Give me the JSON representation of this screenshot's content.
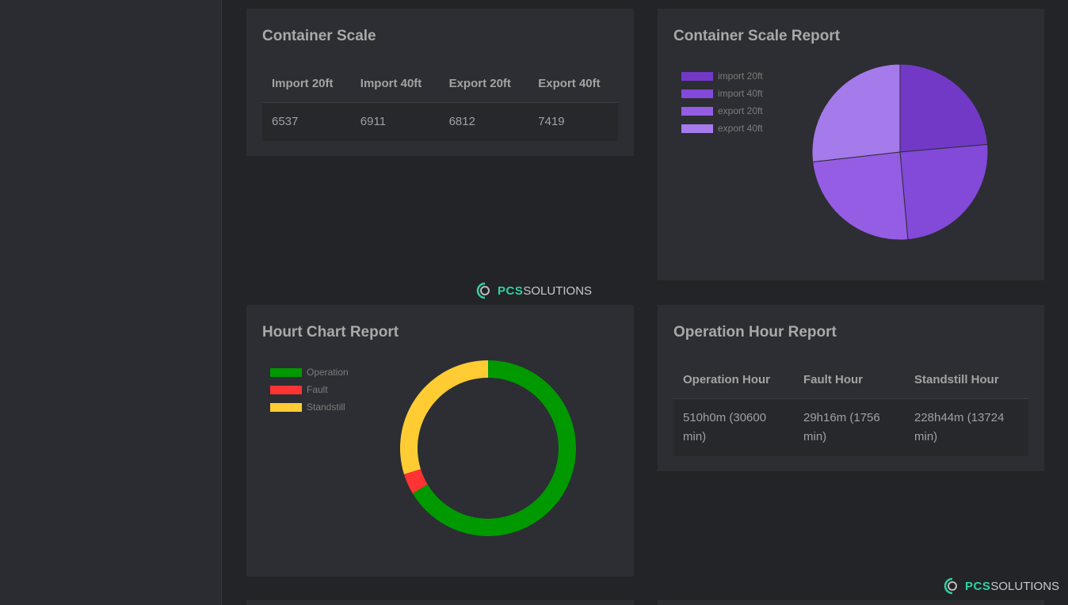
{
  "container_scale": {
    "title": "Container Scale",
    "headers": [
      "Import 20ft",
      "Import 40ft",
      "Export 20ft",
      "Export 40ft"
    ],
    "values": [
      "6537",
      "6911",
      "6812",
      "7419"
    ]
  },
  "container_scale_report": {
    "title": "Container Scale Report",
    "chart_data": {
      "type": "pie",
      "labels": [
        "import 20ft",
        "import 40ft",
        "export 20ft",
        "export 40ft"
      ],
      "values": [
        6537,
        6911,
        6812,
        7419
      ],
      "colors": [
        "#7239c7",
        "#8349d9",
        "#955de3",
        "#a57aeb"
      ],
      "legend_position": "top-left"
    }
  },
  "hour_chart_report": {
    "title": "Hourt Chart Report",
    "chart_data": {
      "type": "doughnut",
      "labels": [
        "Operation",
        "Fault",
        "Standstill"
      ],
      "values": [
        30600,
        1756,
        13724
      ],
      "colors": [
        "#009900",
        "#ff3333",
        "#ffcc33"
      ],
      "legend_position": "top-left"
    }
  },
  "operation_hour_report": {
    "title": "Operation Hour Report",
    "headers": [
      "Operation Hour",
      "Fault Hour",
      "Standstill Hour"
    ],
    "values": [
      "510h0m (30600 min)",
      "29h16m (1756 min)",
      "228h44m (13724 min)"
    ]
  },
  "logo": {
    "bold": "PCS",
    "rest": "SOLUTIONS"
  }
}
